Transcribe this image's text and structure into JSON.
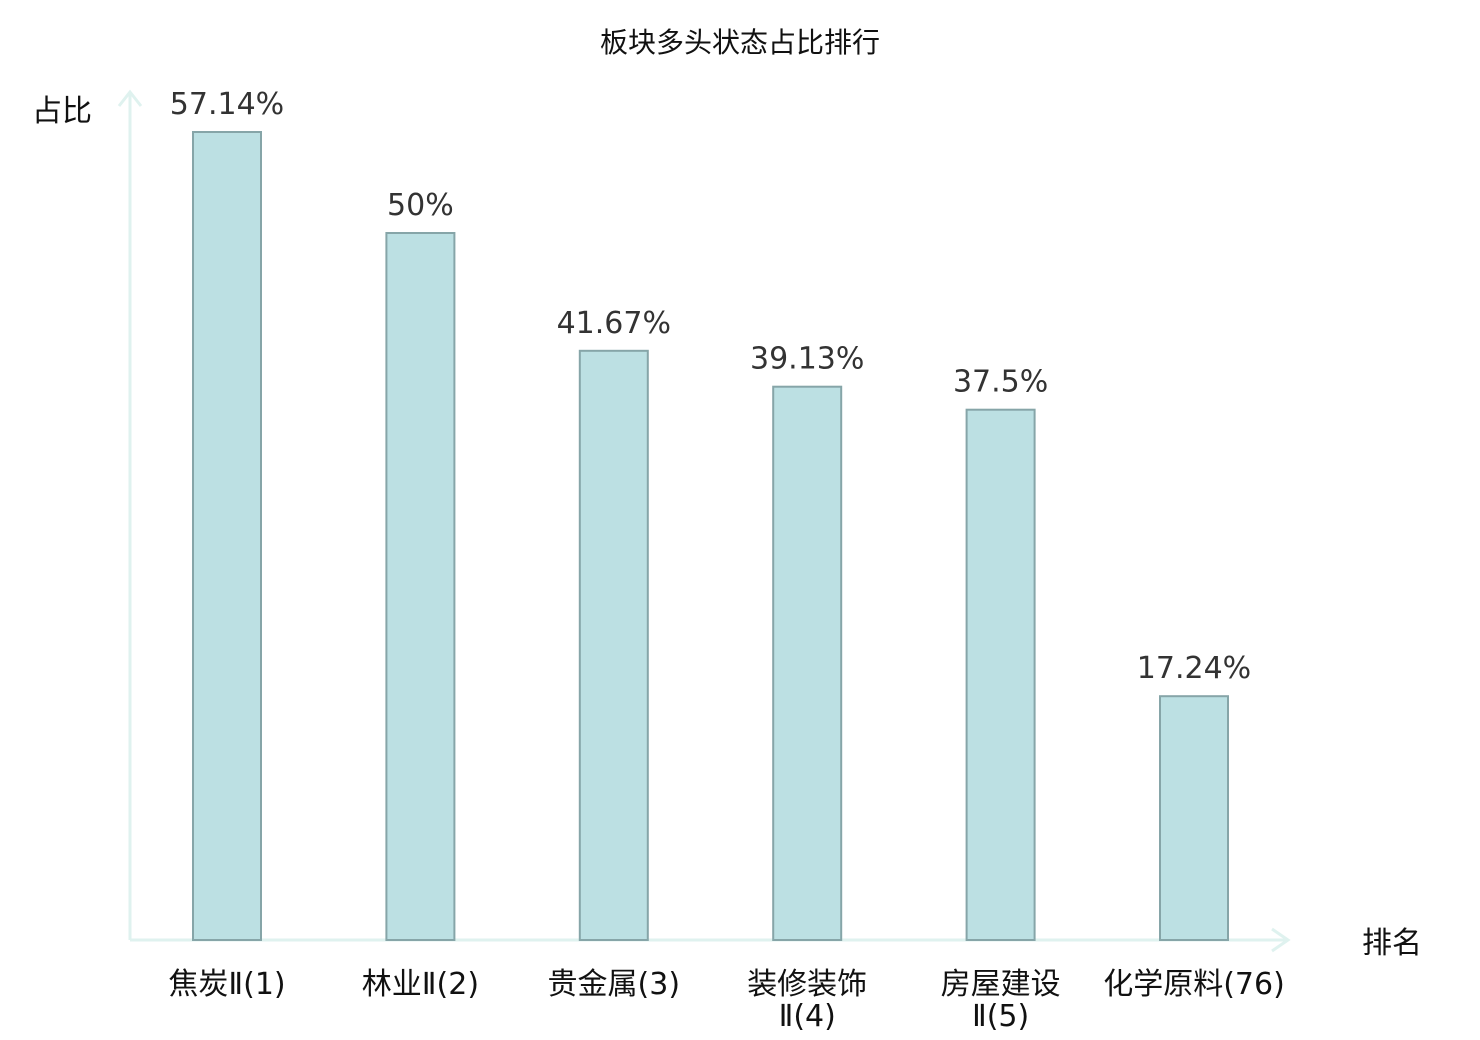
{
  "chart_data": {
    "type": "bar",
    "title": "板块多头状态占比排行",
    "xlabel": "排名",
    "ylabel": "占比",
    "categories": [
      [
        "焦炭Ⅱ(1)"
      ],
      [
        "林业Ⅱ(2)"
      ],
      [
        "贵金属(3)"
      ],
      [
        "装修装饰",
        "Ⅱ(4)"
      ],
      [
        "房屋建设",
        "Ⅱ(5)"
      ],
      [
        "化学原料(76)"
      ]
    ],
    "values": [
      57.14,
      50,
      41.67,
      39.13,
      37.5,
      17.24
    ],
    "value_labels": [
      "57.14%",
      "50%",
      "41.67%",
      "39.13%",
      "37.5%",
      "17.24%"
    ],
    "highlight_index": 5,
    "ylim": [
      0,
      60
    ],
    "grid": false,
    "colors": {
      "bar_fill": "#bce0e3",
      "bar_stroke": "#86a5a8",
      "axis": "#dff2ef",
      "highlight_text": "#e01a1a",
      "text": "#111111",
      "value_text": "#333333"
    }
  }
}
